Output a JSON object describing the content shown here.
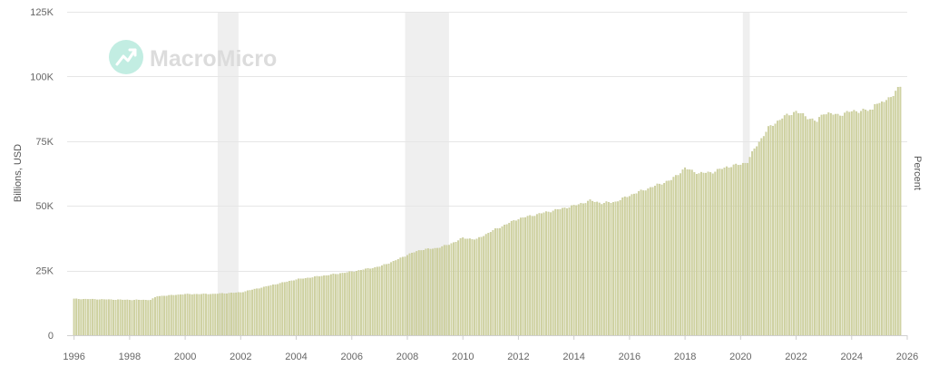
{
  "watermark": {
    "brand": "MacroMicro",
    "icon": "macromicro-logo-icon"
  },
  "chart_data": {
    "type": "bar",
    "ylabel": "Billions, USD",
    "y2label": "Percent",
    "ylim": [
      0,
      125000
    ],
    "y_ticks": [
      0,
      25000,
      50000,
      75000,
      100000,
      125000
    ],
    "y_tick_labels": [
      "0",
      "25K",
      "50K",
      "75K",
      "100K",
      "125K"
    ],
    "xlim": [
      1995.75,
      2026.0
    ],
    "x_ticks": [
      1996,
      1998,
      2000,
      2002,
      2004,
      2006,
      2008,
      2010,
      2012,
      2014,
      2016,
      2018,
      2020,
      2022,
      2024,
      2026
    ],
    "x_tick_labels": [
      "1996",
      "1998",
      "2000",
      "2002",
      "2004",
      "2006",
      "2008",
      "2010",
      "2012",
      "2014",
      "2016",
      "2018",
      "2020",
      "2022",
      "2024",
      "2026"
    ],
    "grid": true,
    "recessions": [
      {
        "start": 2001.17,
        "end": 2001.92
      },
      {
        "start": 2007.92,
        "end": 2009.5
      },
      {
        "start": 2020.08,
        "end": 2020.33
      }
    ],
    "colors": {
      "bar": "#d0d3a2",
      "bar_edge": "#bfc28c",
      "recession": "#efefef",
      "grid": "#e6e6e6"
    },
    "series": [
      {
        "frequency": "monthly",
        "start": "1996-01",
        "anchors": [
          [
            1996.0,
            14000
          ],
          [
            1997.0,
            13800
          ],
          [
            1998.0,
            13600
          ],
          [
            1998.75,
            13600
          ],
          [
            1999.0,
            15000
          ],
          [
            2000.0,
            15800
          ],
          [
            2001.0,
            15900
          ],
          [
            2002.0,
            16500
          ],
          [
            2003.0,
            19000
          ],
          [
            2004.0,
            21500
          ],
          [
            2005.0,
            23000
          ],
          [
            2006.0,
            24500
          ],
          [
            2007.0,
            26500
          ],
          [
            2007.5,
            28500
          ],
          [
            2008.0,
            31000
          ],
          [
            2008.5,
            33000
          ],
          [
            2009.0,
            33500
          ],
          [
            2009.5,
            35000
          ],
          [
            2010.0,
            37500
          ],
          [
            2010.5,
            37000
          ],
          [
            2011.0,
            40000
          ],
          [
            2012.0,
            45000
          ],
          [
            2013.0,
            47500
          ],
          [
            2014.0,
            50000
          ],
          [
            2014.6,
            52000
          ],
          [
            2015.0,
            51000
          ],
          [
            2015.5,
            51500
          ],
          [
            2016.0,
            54000
          ],
          [
            2017.0,
            58000
          ],
          [
            2017.5,
            60000
          ],
          [
            2018.0,
            64500
          ],
          [
            2018.5,
            62500
          ],
          [
            2019.0,
            63000
          ],
          [
            2019.5,
            65000
          ],
          [
            2020.0,
            66000
          ],
          [
            2020.25,
            67000
          ],
          [
            2020.5,
            72000
          ],
          [
            2021.0,
            80000
          ],
          [
            2021.5,
            84000
          ],
          [
            2022.0,
            86500
          ],
          [
            2022.25,
            85000
          ],
          [
            2022.75,
            82500
          ],
          [
            2023.0,
            86000
          ],
          [
            2023.5,
            85000
          ],
          [
            2024.0,
            86500
          ],
          [
            2024.75,
            87000
          ],
          [
            2024.85,
            90500
          ],
          [
            2025.0,
            89000
          ],
          [
            2025.5,
            93000
          ],
          [
            2025.75,
            96000
          ]
        ]
      }
    ]
  }
}
